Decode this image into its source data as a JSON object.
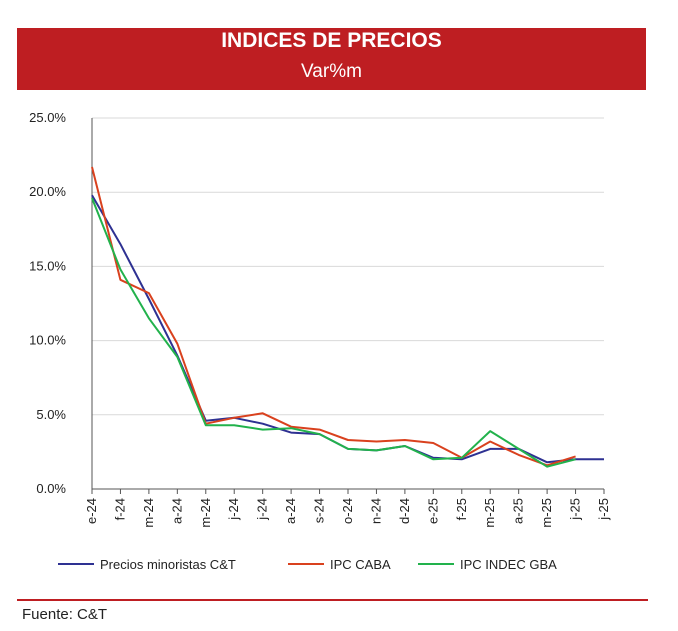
{
  "banner": {
    "title": "INDICES DE PRECIOS",
    "subtitle": "Var%m",
    "color": "#be1e22"
  },
  "source_note": "Fuente: C&T",
  "rule_color": "#be1e22",
  "chart_data": {
    "type": "line",
    "categories": [
      "e-24",
      "f-24",
      "m-24",
      "a-24",
      "m-24",
      "j-24",
      "j-24",
      "a-24",
      "s-24",
      "o-24",
      "n-24",
      "d-24",
      "e-25",
      "f-25",
      "m-25",
      "a-25",
      "m-25",
      "j-25",
      "j-25"
    ],
    "ylim": [
      0,
      25
    ],
    "yticks": [
      0,
      5,
      10,
      15,
      20,
      25
    ],
    "ytick_labels": [
      "0.0%",
      "5.0%",
      "10.0%",
      "15.0%",
      "20.0%",
      "25.0%"
    ],
    "grid": true,
    "legend_position": "bottom",
    "series": [
      {
        "name": "Precios minoristas C&T",
        "color": "#2e3192",
        "values": [
          19.8,
          16.5,
          12.8,
          9.0,
          4.6,
          4.8,
          4.4,
          3.8,
          3.7,
          2.7,
          2.6,
          2.9,
          2.1,
          2.0,
          2.7,
          2.7,
          1.8,
          2.0,
          2.0
        ]
      },
      {
        "name": "IPC CABA",
        "color": "#d9411e",
        "values": [
          21.7,
          14.1,
          13.2,
          9.8,
          4.4,
          4.8,
          5.1,
          4.2,
          4.0,
          3.3,
          3.2,
          3.3,
          3.1,
          2.1,
          3.2,
          2.3,
          1.6,
          2.2,
          null
        ]
      },
      {
        "name": "IPC INDEC GBA",
        "color": "#22b24c",
        "values": [
          19.6,
          14.8,
          11.5,
          8.9,
          4.3,
          4.3,
          4.0,
          4.1,
          3.7,
          2.7,
          2.6,
          2.9,
          2.0,
          2.1,
          3.9,
          2.7,
          1.5,
          2.0,
          null
        ]
      }
    ]
  }
}
